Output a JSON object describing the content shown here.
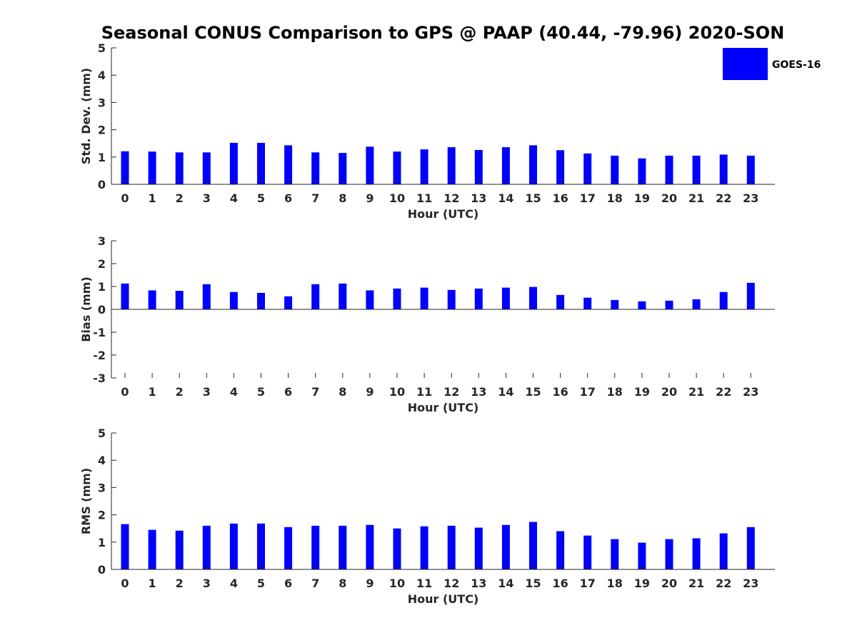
{
  "figure_title": "Seasonal CONUS Comparison to GPS @ PAAP (40.44, -79.96) 2020-SON",
  "legend": {
    "label": "GOES-16",
    "color": "#0000ff"
  },
  "chart_data": [
    {
      "type": "bar",
      "title": "",
      "xlabel": "Hour (UTC)",
      "ylabel": "Std. Dev. (mm)",
      "ylim": [
        0,
        5
      ],
      "yticks": [
        "0",
        "1",
        "2",
        "3",
        "4",
        "5"
      ],
      "categories": [
        "0",
        "1",
        "2",
        "3",
        "4",
        "5",
        "6",
        "7",
        "8",
        "9",
        "10",
        "11",
        "12",
        "13",
        "14",
        "15",
        "16",
        "17",
        "18",
        "19",
        "20",
        "21",
        "22",
        "23"
      ],
      "series": [
        {
          "name": "GOES-16",
          "color": "#0000ff",
          "values": [
            1.21,
            1.2,
            1.17,
            1.17,
            1.52,
            1.52,
            1.43,
            1.17,
            1.15,
            1.38,
            1.2,
            1.28,
            1.36,
            1.26,
            1.36,
            1.43,
            1.25,
            1.13,
            1.05,
            0.95,
            1.05,
            1.05,
            1.09,
            1.05
          ]
        }
      ],
      "grid": false,
      "legend_position": "top-right"
    },
    {
      "type": "bar",
      "title": "",
      "xlabel": "Hour (UTC)",
      "ylabel": "Bias (mm)",
      "ylim": [
        -3,
        3
      ],
      "yticks": [
        "-3",
        "-2",
        "-1",
        "0",
        "1",
        "2",
        "3"
      ],
      "categories": [
        "0",
        "1",
        "2",
        "3",
        "4",
        "5",
        "6",
        "7",
        "8",
        "9",
        "10",
        "11",
        "12",
        "13",
        "14",
        "15",
        "16",
        "17",
        "18",
        "19",
        "20",
        "21",
        "22",
        "23"
      ],
      "series": [
        {
          "name": "GOES-16",
          "color": "#0000ff",
          "values": [
            1.13,
            0.83,
            0.81,
            1.1,
            0.76,
            0.72,
            0.57,
            1.1,
            1.13,
            0.83,
            0.91,
            0.95,
            0.85,
            0.91,
            0.95,
            0.98,
            0.63,
            0.51,
            0.41,
            0.35,
            0.38,
            0.44,
            0.76,
            1.16
          ]
        }
      ],
      "grid": false
    },
    {
      "type": "bar",
      "title": "",
      "xlabel": "Hour (UTC)",
      "ylabel": "RMS (mm)",
      "ylim": [
        0,
        5
      ],
      "yticks": [
        "0",
        "1",
        "2",
        "3",
        "4",
        "5"
      ],
      "categories": [
        "0",
        "1",
        "2",
        "3",
        "4",
        "5",
        "6",
        "7",
        "8",
        "9",
        "10",
        "11",
        "12",
        "13",
        "14",
        "15",
        "16",
        "17",
        "18",
        "19",
        "20",
        "21",
        "22",
        "23"
      ],
      "series": [
        {
          "name": "GOES-16",
          "color": "#0000ff",
          "values": [
            1.66,
            1.45,
            1.42,
            1.6,
            1.68,
            1.68,
            1.55,
            1.6,
            1.6,
            1.63,
            1.5,
            1.58,
            1.6,
            1.53,
            1.63,
            1.74,
            1.4,
            1.24,
            1.11,
            0.98,
            1.11,
            1.14,
            1.32,
            1.55
          ]
        }
      ],
      "grid": false
    }
  ]
}
